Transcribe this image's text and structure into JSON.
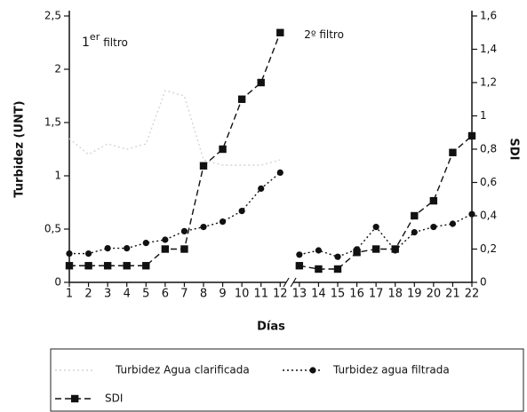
{
  "chart_data": {
    "type": "line",
    "ylabel": "Turbidez (UNT)",
    "y2label": "SDI",
    "xlabel": "Días",
    "annotations": [
      {
        "parts": [
          "1",
          "er",
          "filtro"
        ],
        "x": 1,
        "y": 2.25
      },
      {
        "text": "2º filtro",
        "x": 12.6,
        "y": 2.32
      }
    ],
    "x": [
      1,
      2,
      3,
      4,
      5,
      6,
      7,
      8,
      9,
      10,
      11,
      12,
      13,
      14,
      15,
      16,
      17,
      18,
      19,
      20,
      21,
      22
    ],
    "xlim": [
      1,
      22
    ],
    "xticks": [
      1,
      2,
      3,
      4,
      5,
      6,
      7,
      8,
      9,
      10,
      11,
      12,
      13,
      14,
      15,
      16,
      17,
      18,
      19,
      20,
      21,
      22
    ],
    "axis_break_after": 12,
    "ylim": [
      0,
      2.5
    ],
    "yticks": [
      0,
      {
        "value": 0.5,
        "label": "0,5"
      },
      1,
      {
        "value": 1.5,
        "label": "1,5"
      },
      2,
      {
        "value": 2.5,
        "label": "2,5"
      }
    ],
    "y2lim": [
      0,
      1.6
    ],
    "y2ticks": [
      0,
      {
        "value": 0.2,
        "label": "0,2"
      },
      {
        "value": 0.4,
        "label": "0,4"
      },
      {
        "value": 0.6,
        "label": "0,6"
      },
      {
        "value": 0.8,
        "label": "0,8"
      },
      1,
      {
        "value": 1.2,
        "label": "1,2"
      },
      {
        "value": 1.4,
        "label": "1,4"
      },
      {
        "value": 1.6,
        "label": "1,6"
      }
    ],
    "series": [
      {
        "name": "Turbidez Agua clarificada",
        "color": "#d4d4d4",
        "marker": "none",
        "dash": "2,3",
        "values": [
          1.35,
          1.2,
          1.3,
          1.25,
          1.3,
          1.8,
          1.75,
          1.15,
          1.1,
          1.1,
          1.1,
          1.15,
          null,
          null,
          null,
          null,
          null,
          null,
          null,
          null,
          null,
          null
        ]
      },
      {
        "name": "Turbidez agua filtrada",
        "color": "#111111",
        "marker": "circle",
        "dash": "2,3",
        "values": [
          0.27,
          0.27,
          0.32,
          0.32,
          0.37,
          0.4,
          0.48,
          0.52,
          0.57,
          0.67,
          0.88,
          1.03,
          0.26,
          0.3,
          0.24,
          0.31,
          0.52,
          0.3,
          0.47,
          0.52,
          0.55,
          0.64
        ]
      },
      {
        "name": "SDI",
        "color": "#111111",
        "marker": "square",
        "dash": "7,4",
        "axis": "y2",
        "values": [
          0.1,
          0.1,
          0.1,
          0.1,
          0.1,
          0.2,
          0.2,
          0.7,
          0.8,
          1.1,
          1.2,
          1.5,
          0.1,
          0.08,
          0.08,
          0.18,
          0.2,
          0.2,
          0.4,
          0.49,
          0.78,
          0.88
        ]
      }
    ]
  }
}
